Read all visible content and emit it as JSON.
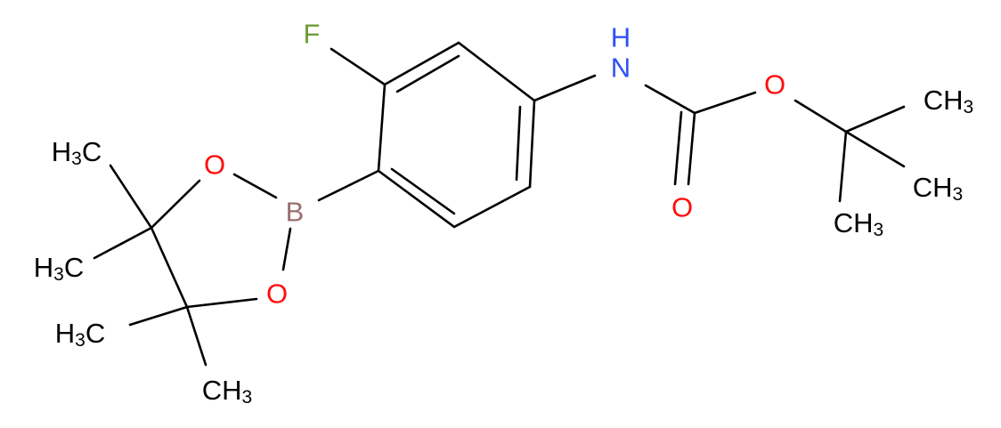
{
  "atoms": [
    {
      "symbol": "F"
    },
    {
      "symbol": "N"
    },
    {
      "symbol": "H"
    },
    {
      "symbol": "O"
    },
    {
      "symbol": "O"
    },
    {
      "symbol": "B"
    },
    {
      "symbol": "O"
    },
    {
      "symbol": "O"
    }
  ],
  "methyls": [
    {
      "main": "CH",
      "sub": "3"
    },
    {
      "main": "CH",
      "sub": "3"
    },
    {
      "main": "CH",
      "sub": "3"
    },
    {
      "pre": "H",
      "sub": "3",
      "main": "C"
    },
    {
      "pre": "H",
      "sub": "3",
      "main": "C"
    },
    {
      "pre": "H",
      "sub": "3",
      "main": "C"
    },
    {
      "main": "CH",
      "sub": "3"
    }
  ]
}
